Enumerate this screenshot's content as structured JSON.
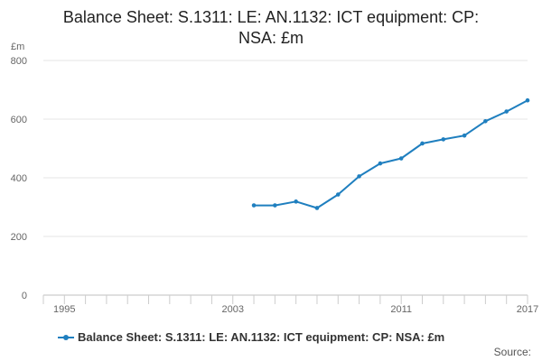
{
  "chart_data": {
    "type": "line",
    "title": "Balance Sheet: S.1311: LE: AN.1132: ICT equipment: CP: NSA: £m",
    "title_lines": [
      "Balance Sheet: S.1311: LE: AN.1132: ICT equipment: CP:",
      "NSA: £m"
    ],
    "ylabel": "£m",
    "xlabel": "",
    "ylim": [
      0,
      800
    ],
    "yticks": [
      0,
      200,
      400,
      600,
      800
    ],
    "xlim": [
      1994,
      2017
    ],
    "xtick_labels": [
      "1995",
      "2003",
      "2011",
      "2017"
    ],
    "xtick_values": [
      1995,
      2003,
      2011,
      2017
    ],
    "grid": true,
    "legend_position": "bottom",
    "series": [
      {
        "name": "Balance Sheet: S.1311: LE: AN.1132: ICT equipment: CP: NSA: £m",
        "color": "#1f7fbf",
        "x": [
          2004,
          2005,
          2006,
          2007,
          2008,
          2009,
          2010,
          2011,
          2012,
          2013,
          2014,
          2015,
          2016,
          2017
        ],
        "values": [
          306,
          306,
          319,
          297,
          343,
          405,
          449,
          466,
          517,
          531,
          544,
          593,
          626,
          664
        ]
      }
    ]
  },
  "footer": {
    "source_label": "Source:"
  }
}
